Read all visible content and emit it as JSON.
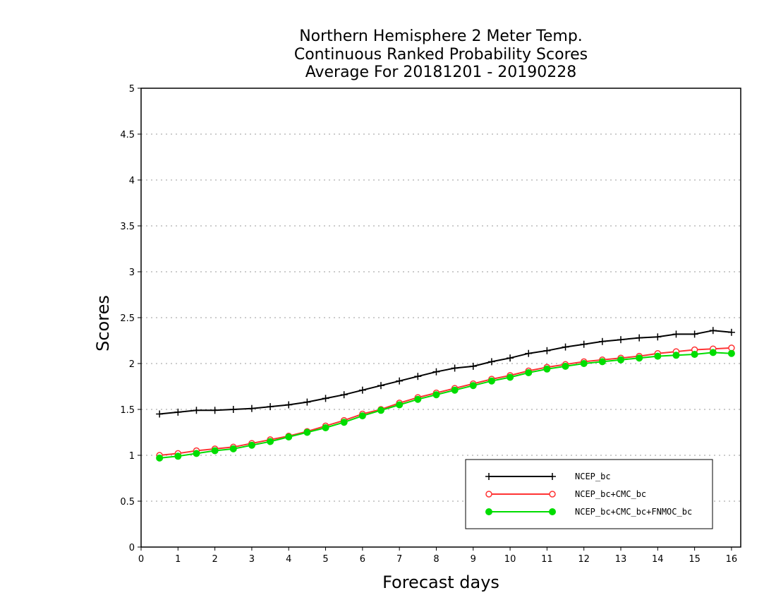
{
  "chart_data": {
    "type": "line",
    "title": [
      "Northern Hemisphere 2 Meter Temp.",
      "Continuous Ranked Probability Scores",
      "Average For 20181201 - 20190228"
    ],
    "xlabel": "Forecast days",
    "ylabel": "Scores",
    "xlim": [
      0,
      16.25
    ],
    "ylim": [
      0,
      5
    ],
    "xticks": [
      0,
      1,
      2,
      3,
      4,
      5,
      6,
      7,
      8,
      9,
      10,
      11,
      12,
      13,
      14,
      15,
      16
    ],
    "xtick_labels": [
      "0",
      "1",
      "2",
      "3",
      "4",
      "5",
      "6",
      "7",
      "8",
      "9",
      "10",
      "11",
      "12",
      "13",
      "14",
      "15",
      "16"
    ],
    "yticks": [
      0,
      0.5,
      1,
      1.5,
      2,
      2.5,
      3,
      3.5,
      4,
      4.5,
      5
    ],
    "ytick_labels": [
      "0",
      "0.5",
      "1",
      "1.5",
      "2",
      "2.5",
      "3",
      "3.5",
      "4",
      "4.5",
      "5"
    ],
    "grid": "horizontal dotted",
    "legend_position": "bottom-right",
    "x": [
      0.5,
      1.0,
      1.5,
      2.0,
      2.5,
      3.0,
      3.5,
      4.0,
      4.5,
      5.0,
      5.5,
      6.0,
      6.5,
      7.0,
      7.5,
      8.0,
      8.5,
      9.0,
      9.5,
      10.0,
      10.5,
      11.0,
      11.5,
      12.0,
      12.5,
      13.0,
      13.5,
      14.0,
      14.5,
      15.0,
      15.5,
      16.0
    ],
    "series": [
      {
        "name": "NCEP_bc",
        "color": "#000000",
        "marker": "plus",
        "values": [
          1.45,
          1.47,
          1.49,
          1.49,
          1.5,
          1.51,
          1.53,
          1.55,
          1.58,
          1.62,
          1.66,
          1.71,
          1.76,
          1.81,
          1.86,
          1.91,
          1.95,
          1.97,
          2.02,
          2.06,
          2.11,
          2.14,
          2.18,
          2.21,
          2.24,
          2.26,
          2.28,
          2.29,
          2.32,
          2.32,
          2.36,
          2.34
        ]
      },
      {
        "name": "NCEP_bc+CMC_bc",
        "color": "#ff3333",
        "marker": "open-circle",
        "values": [
          1.0,
          1.02,
          1.05,
          1.07,
          1.09,
          1.13,
          1.17,
          1.21,
          1.26,
          1.32,
          1.38,
          1.45,
          1.5,
          1.57,
          1.63,
          1.68,
          1.73,
          1.78,
          1.83,
          1.87,
          1.92,
          1.96,
          1.99,
          2.02,
          2.04,
          2.06,
          2.08,
          2.11,
          2.13,
          2.15,
          2.16,
          2.17
        ]
      },
      {
        "name": "NCEP_bc+CMC_bc+FNMOC_bc",
        "color": "#00dd00",
        "marker": "filled-circle",
        "values": [
          0.97,
          0.99,
          1.02,
          1.05,
          1.07,
          1.11,
          1.15,
          1.2,
          1.25,
          1.3,
          1.36,
          1.43,
          1.49,
          1.55,
          1.61,
          1.66,
          1.71,
          1.76,
          1.81,
          1.85,
          1.9,
          1.94,
          1.97,
          2.0,
          2.02,
          2.04,
          2.06,
          2.08,
          2.09,
          2.1,
          2.12,
          2.11
        ]
      }
    ]
  }
}
